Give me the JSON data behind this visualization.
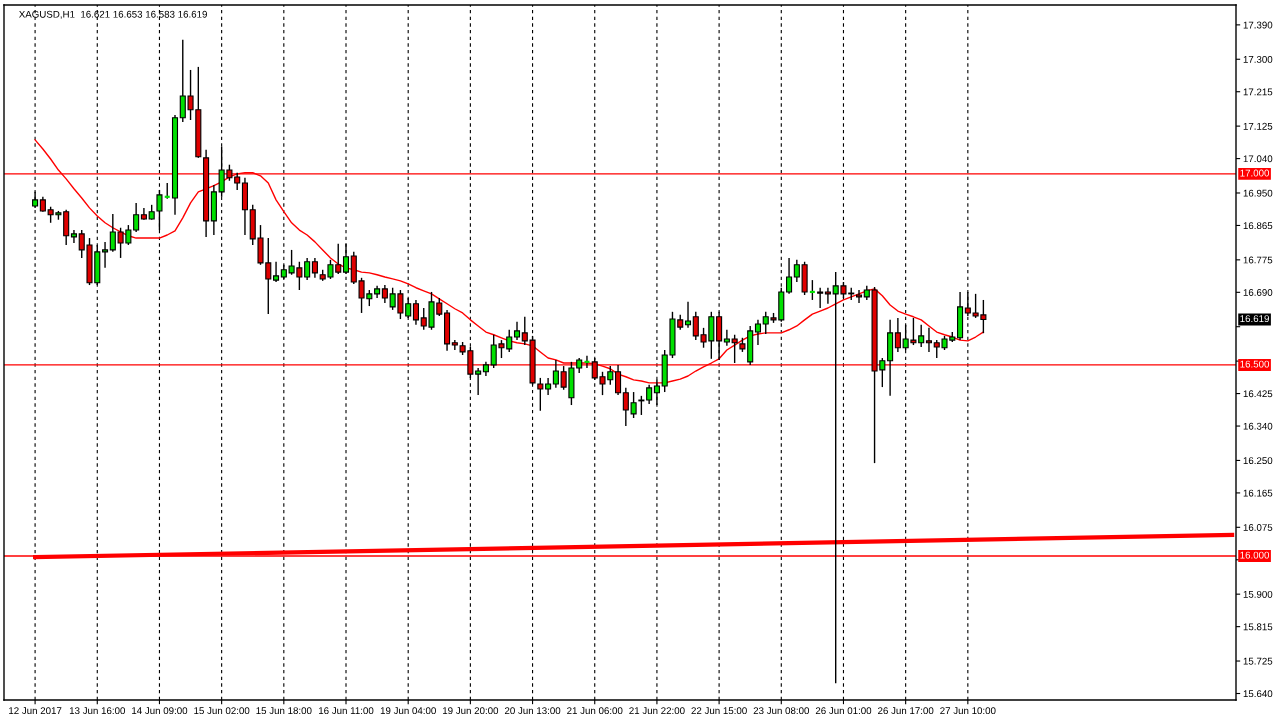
{
  "chart_data": {
    "type": "candlestick",
    "title": "XAGUSD,H1  16.621 16.653 16.583 16.619",
    "categories": [
      "12 Jun 2017",
      null,
      null,
      null,
      null,
      null,
      null,
      null,
      "13 Jun 16:00",
      null,
      null,
      null,
      null,
      null,
      null,
      null,
      "14 Jun 09:00",
      null,
      null,
      null,
      null,
      null,
      null,
      null,
      "15 Jun 02:00",
      null,
      null,
      null,
      null,
      null,
      null,
      null,
      "15 Jun 18:00",
      null,
      null,
      null,
      null,
      null,
      null,
      null,
      "16 Jun 11:00",
      null,
      null,
      null,
      null,
      null,
      null,
      null,
      "19 Jun 04:00",
      null,
      null,
      null,
      null,
      null,
      null,
      null,
      "19 Jun 20:00",
      null,
      null,
      null,
      null,
      null,
      null,
      null,
      "20 Jun 13:00",
      null,
      null,
      null,
      null,
      null,
      null,
      null,
      "21 Jun 06:00",
      null,
      null,
      null,
      null,
      null,
      null,
      null,
      "21 Jun 22:00",
      null,
      null,
      null,
      null,
      null,
      null,
      null,
      "22 Jun 15:00",
      null,
      null,
      null,
      null,
      null,
      null,
      null,
      "23 Jun 08:00",
      null,
      null,
      null,
      null,
      null,
      null,
      null,
      "26 Jun 01:00",
      null,
      null,
      null,
      null,
      null,
      null,
      null,
      "26 Jun 17:00",
      null,
      null,
      null,
      null,
      null,
      null,
      null,
      "27 Jun 10:00",
      null,
      null,
      null,
      null,
      null,
      null,
      null,
      null,
      null,
      null,
      null,
      null,
      null,
      null,
      null,
      null,
      null,
      null,
      null,
      null,
      null,
      null,
      null,
      null,
      null,
      null,
      null,
      null,
      null,
      null,
      null,
      null,
      null,
      null
    ],
    "ohlc": [
      [
        16.916,
        16.953,
        16.911,
        16.932
      ],
      [
        16.932,
        16.94,
        16.901,
        16.903
      ],
      [
        16.906,
        16.914,
        16.872,
        16.893
      ],
      [
        16.893,
        16.903,
        16.88,
        16.898
      ],
      [
        16.901,
        16.906,
        16.814,
        16.838
      ],
      [
        16.835,
        16.853,
        16.819,
        16.843
      ],
      [
        16.843,
        16.853,
        16.78,
        16.801
      ],
      [
        16.814,
        16.832,
        16.709,
        16.715
      ],
      [
        16.715,
        16.814,
        16.709,
        16.796
      ],
      [
        16.796,
        16.822,
        16.754,
        16.801
      ],
      [
        16.801,
        16.895,
        16.796,
        16.848
      ],
      [
        16.848,
        16.859,
        16.78,
        16.819
      ],
      [
        16.819,
        16.866,
        16.814,
        16.853
      ],
      [
        16.853,
        16.924,
        16.848,
        16.893
      ],
      [
        16.893,
        16.911,
        16.88,
        16.882
      ],
      [
        16.882,
        16.919,
        16.88,
        16.901
      ],
      [
        16.903,
        16.958,
        16.853,
        16.945
      ],
      [
        16.94,
        16.976,
        16.935,
        16.94
      ],
      [
        16.937,
        17.154,
        16.893,
        17.147
      ],
      [
        17.147,
        17.351,
        17.136,
        17.204
      ],
      [
        17.204,
        17.272,
        17.141,
        17.168
      ],
      [
        17.168,
        17.28,
        17.042,
        17.045
      ],
      [
        17.042,
        17.063,
        16.835,
        16.877
      ],
      [
        16.877,
        16.971,
        16.84,
        16.953
      ],
      [
        16.953,
        17.071,
        16.94,
        17.01
      ],
      [
        17.01,
        17.024,
        16.982,
        16.99
      ],
      [
        16.992,
        17.003,
        16.958,
        16.976
      ],
      [
        16.976,
        16.99,
        16.84,
        16.906
      ],
      [
        16.906,
        16.919,
        16.814,
        16.83
      ],
      [
        16.832,
        16.866,
        16.762,
        16.767
      ],
      [
        16.767,
        16.832,
        16.633,
        16.725
      ],
      [
        16.722,
        16.77,
        16.717,
        16.733
      ],
      [
        16.73,
        16.762,
        16.725,
        16.749
      ],
      [
        16.741,
        16.801,
        16.736,
        16.759
      ],
      [
        16.754,
        16.77,
        16.696,
        16.73
      ],
      [
        16.73,
        16.78,
        16.722,
        16.77
      ],
      [
        16.77,
        16.78,
        16.728,
        16.741
      ],
      [
        16.736,
        16.749,
        16.72,
        16.725
      ],
      [
        16.73,
        16.775,
        16.725,
        16.762
      ],
      [
        16.762,
        16.817,
        16.738,
        16.743
      ],
      [
        16.743,
        16.817,
        16.738,
        16.783
      ],
      [
        16.785,
        16.796,
        16.712,
        16.717
      ],
      [
        16.72,
        16.728,
        16.636,
        16.675
      ],
      [
        16.673,
        16.696,
        16.654,
        16.686
      ],
      [
        16.686,
        16.707,
        16.675,
        16.699
      ],
      [
        16.699,
        16.709,
        16.662,
        16.675
      ],
      [
        16.652,
        16.702,
        16.644,
        16.686
      ],
      [
        16.686,
        16.696,
        16.62,
        16.636
      ],
      [
        16.628,
        16.675,
        16.623,
        16.66
      ],
      [
        16.66,
        16.67,
        16.605,
        16.618
      ],
      [
        16.623,
        16.649,
        16.592,
        16.602
      ],
      [
        16.599,
        16.691,
        16.592,
        16.665
      ],
      [
        16.662,
        16.675,
        16.628,
        16.633
      ],
      [
        16.636,
        16.644,
        16.537,
        16.555
      ],
      [
        16.558,
        16.565,
        16.539,
        16.552
      ],
      [
        16.55,
        16.56,
        16.526,
        16.534
      ],
      [
        16.537,
        16.547,
        16.466,
        16.476
      ],
      [
        16.476,
        16.492,
        16.421,
        16.484
      ],
      [
        16.482,
        16.508,
        16.471,
        16.5
      ],
      [
        16.5,
        16.579,
        16.492,
        16.552
      ],
      [
        16.555,
        16.565,
        16.518,
        16.545
      ],
      [
        16.542,
        16.592,
        16.534,
        16.573
      ],
      [
        16.573,
        16.613,
        16.565,
        16.589
      ],
      [
        16.584,
        16.626,
        16.552,
        16.563
      ],
      [
        16.565,
        16.576,
        16.448,
        16.453
      ],
      [
        16.45,
        16.466,
        16.38,
        16.437
      ],
      [
        16.437,
        16.466,
        16.421,
        16.45
      ],
      [
        16.45,
        16.513,
        16.44,
        16.484
      ],
      [
        16.482,
        16.497,
        16.435,
        16.442
      ],
      [
        16.414,
        16.508,
        16.395,
        16.492
      ],
      [
        16.492,
        16.518,
        16.479,
        16.513
      ],
      [
        16.508,
        16.524,
        16.492,
        16.508
      ],
      [
        16.508,
        16.518,
        16.461,
        16.466
      ],
      [
        16.469,
        16.482,
        16.421,
        16.45
      ],
      [
        16.461,
        16.497,
        16.448,
        16.482
      ],
      [
        16.482,
        16.5,
        16.421,
        16.427
      ],
      [
        16.427,
        16.44,
        16.34,
        16.382
      ],
      [
        16.372,
        16.429,
        16.361,
        16.401
      ],
      [
        16.406,
        16.419,
        16.369,
        16.408
      ],
      [
        16.408,
        16.448,
        16.398,
        16.44
      ],
      [
        16.427,
        16.461,
        16.395,
        16.445
      ],
      [
        16.445,
        16.539,
        16.429,
        16.526
      ],
      [
        16.526,
        16.639,
        16.518,
        16.62
      ],
      [
        16.618,
        16.631,
        16.592,
        16.599
      ],
      [
        16.605,
        16.665,
        16.597,
        16.615
      ],
      [
        16.626,
        16.639,
        16.565,
        16.576
      ],
      [
        16.579,
        16.597,
        16.545,
        16.56
      ],
      [
        16.563,
        16.639,
        16.516,
        16.626
      ],
      [
        16.626,
        16.639,
        16.513,
        16.563
      ],
      [
        16.56,
        16.592,
        16.55,
        16.568
      ],
      [
        16.568,
        16.579,
        16.505,
        16.558
      ],
      [
        16.555,
        16.571,
        16.534,
        16.542
      ],
      [
        16.508,
        16.602,
        16.5,
        16.589
      ],
      [
        16.586,
        16.618,
        16.552,
        16.607
      ],
      [
        16.607,
        16.639,
        16.581,
        16.626
      ],
      [
        16.623,
        16.636,
        16.61,
        16.618
      ],
      [
        16.618,
        16.702,
        16.613,
        16.691
      ],
      [
        16.691,
        16.78,
        16.686,
        16.73
      ],
      [
        16.73,
        16.775,
        16.717,
        16.762
      ],
      [
        16.762,
        16.77,
        16.683,
        16.691
      ],
      [
        16.691,
        16.722,
        16.67,
        16.691
      ],
      [
        16.691,
        16.702,
        16.649,
        16.688
      ],
      [
        16.691,
        16.702,
        16.66,
        16.686
      ],
      [
        16.686,
        16.743,
        15.667,
        16.707
      ],
      [
        16.707,
        16.717,
        16.675,
        16.686
      ],
      [
        16.688,
        16.702,
        16.67,
        16.686
      ],
      [
        16.683,
        16.696,
        16.662,
        16.678
      ],
      [
        16.678,
        16.707,
        16.67,
        16.696
      ],
      [
        16.696,
        16.704,
        16.243,
        16.484
      ],
      [
        16.487,
        16.518,
        16.442,
        16.511
      ],
      [
        16.511,
        16.618,
        16.419,
        16.584
      ],
      [
        16.584,
        16.623,
        16.534,
        16.545
      ],
      [
        16.545,
        16.605,
        16.539,
        16.568
      ],
      [
        16.565,
        16.623,
        16.552,
        16.558
      ],
      [
        16.558,
        16.605,
        16.547,
        16.576
      ],
      [
        16.563,
        16.597,
        16.534,
        16.558
      ],
      [
        16.558,
        16.565,
        16.518,
        16.547
      ],
      [
        16.545,
        16.576,
        16.539,
        16.568
      ],
      [
        16.565,
        16.586,
        16.56,
        16.573
      ],
      [
        16.571,
        16.691,
        16.565,
        16.652
      ],
      [
        16.649,
        16.691,
        16.628,
        16.636
      ],
      [
        16.636,
        16.686,
        16.623,
        16.628
      ],
      [
        16.631,
        16.67,
        16.583,
        16.619
      ],
      null,
      null,
      null,
      null,
      null,
      null,
      null,
      null,
      null,
      null,
      null,
      null,
      null,
      null,
      null,
      null,
      null,
      null,
      null,
      null,
      null,
      null,
      null,
      null,
      null,
      null,
      null,
      null,
      null,
      null,
      null,
      null
    ],
    "colors": [
      "#00e000",
      "#e00000",
      "#e00000",
      "#00e000",
      "#e00000",
      "#00e000",
      "#e00000",
      "#e00000",
      "#00e000",
      "#00e000",
      "#00e000",
      "#e00000",
      "#00e000",
      "#00e000",
      "#e00000",
      "#00e000",
      "#00e000",
      "#00e000",
      "#00e000",
      "#00e000",
      "#e00000",
      "#e00000",
      "#e00000",
      "#00e000",
      "#00e000",
      "#e00000",
      "#e00000",
      "#e00000",
      "#e00000",
      "#e00000",
      "#e00000",
      "#00e000",
      "#00e000",
      "#00e000",
      "#e00000",
      "#00e000",
      "#e00000",
      "#e00000",
      "#00e000",
      "#e00000",
      "#00e000",
      "#e00000",
      "#e00000",
      "#00e000",
      "#00e000",
      "#e00000",
      "#00e000",
      "#e00000",
      "#00e000",
      "#e00000",
      "#e00000",
      "#00e000",
      "#e00000",
      "#e00000",
      "#e00000",
      "#e00000",
      "#e00000",
      "#00e000",
      "#00e000",
      "#00e000",
      "#e00000",
      "#00e000",
      "#00e000",
      "#e00000",
      "#e00000",
      "#e00000",
      "#00e000",
      "#00e000",
      "#e00000",
      "#00e000",
      "#00e000",
      "#00e000",
      "#e00000",
      "#e00000",
      "#00e000",
      "#e00000",
      "#e00000",
      "#00e000",
      "#00e000",
      "#00e000",
      "#00e000",
      "#00e000",
      "#00e000",
      "#e00000",
      "#00e000",
      "#e00000",
      "#e00000",
      "#00e000",
      "#e00000",
      "#00e000",
      "#e00000",
      "#e00000",
      "#00e000",
      "#00e000",
      "#00e000",
      "#e00000",
      "#00e000",
      "#00e000",
      "#00e000",
      "#e00000",
      "#00e000",
      "#e00000",
      "#e00000",
      "#00e000",
      "#e00000",
      "#e00000",
      "#e00000",
      "#00e000",
      "#e00000",
      "#00e000",
      "#00e000",
      "#e00000",
      "#00e000",
      "#e00000",
      "#00e000",
      "#e00000",
      "#e00000",
      "#00e000",
      "#00e000",
      "#00e000",
      "#e00000",
      "#e00000",
      "#e00000",
      null,
      null,
      null,
      null,
      null,
      null,
      null,
      null,
      null,
      null,
      null,
      null,
      null,
      null,
      null,
      null,
      null,
      null,
      null,
      null,
      null,
      null,
      null,
      null,
      null,
      null,
      null,
      null,
      null,
      null,
      null,
      null
    ],
    "series": [
      {
        "type": "line",
        "color": "#ff0000",
        "values": [
          17.089,
          17.065,
          17.039,
          17.01,
          16.987,
          16.961,
          16.937,
          16.911,
          16.89,
          16.872,
          16.859,
          16.848,
          16.838,
          16.832,
          16.832,
          16.832,
          16.832,
          16.84,
          16.851,
          16.885,
          16.924,
          16.953,
          16.961,
          16.969,
          16.979,
          16.992,
          17.0,
          17.003,
          17.003,
          16.995,
          16.976,
          16.932,
          16.901,
          16.872,
          16.853,
          16.84,
          16.822,
          16.801,
          16.78,
          16.764,
          16.754,
          16.749,
          16.743,
          16.741,
          16.736,
          16.73,
          16.725,
          16.72,
          16.712,
          16.702,
          16.694,
          16.686,
          16.673,
          16.66,
          16.647,
          16.636,
          16.618,
          16.602,
          16.586,
          16.579,
          16.571,
          16.563,
          16.558,
          16.555,
          16.55,
          16.534,
          16.518,
          16.513,
          16.505,
          16.505,
          16.505,
          16.505,
          16.503,
          16.497,
          16.49,
          16.476,
          16.469,
          16.461,
          16.458,
          16.453,
          16.453,
          16.453,
          16.458,
          16.463,
          16.471,
          16.484,
          16.495,
          16.505,
          16.516,
          16.539,
          16.552,
          16.565,
          16.576,
          16.581,
          16.584,
          16.584,
          16.584,
          16.592,
          16.602,
          16.618,
          16.633,
          16.641,
          16.649,
          16.66,
          16.67,
          16.678,
          16.686,
          16.694,
          16.699,
          16.681,
          16.657,
          16.641,
          16.633,
          16.626,
          16.618,
          16.602,
          16.586,
          16.579,
          16.573,
          16.565,
          16.563,
          16.573,
          16.586,
          null,
          null,
          null,
          null,
          null,
          null,
          null,
          null,
          null,
          null,
          null,
          null,
          null,
          null,
          null,
          null,
          null,
          null,
          null,
          null,
          null,
          null,
          null,
          null,
          null,
          null,
          null,
          null,
          null,
          null,
          null,
          null
        ]
      },
      {
        "type": "line",
        "color": "#ff0000",
        "values": [
          15.997,
          null,
          null,
          null,
          null,
          null,
          null,
          null,
          null,
          null,
          null,
          null,
          null,
          null,
          null,
          null,
          null,
          null,
          null,
          null,
          null,
          null,
          null,
          null,
          null,
          null,
          null,
          null,
          null,
          null,
          null,
          null,
          null,
          null,
          null,
          null,
          null,
          null,
          null,
          null,
          null,
          null,
          null,
          null,
          null,
          null,
          null,
          null,
          null,
          null,
          null,
          null,
          null,
          null,
          null,
          null,
          null,
          null,
          null,
          null,
          null,
          null,
          null,
          null,
          null,
          null,
          null,
          null,
          null,
          null,
          null,
          null,
          null,
          null,
          null,
          null,
          null,
          null,
          null,
          null,
          null,
          null,
          null,
          null,
          null,
          null,
          null,
          null,
          null,
          null,
          null,
          null,
          null,
          null,
          null,
          null,
          null,
          null,
          null,
          null,
          null,
          null,
          null,
          null,
          null,
          null,
          null,
          null,
          null,
          null,
          null,
          null,
          null,
          null,
          null,
          null,
          null,
          null,
          null,
          null,
          null,
          null,
          null,
          null,
          null,
          null,
          null,
          null,
          null,
          null,
          null,
          null,
          null,
          null,
          null,
          null,
          null,
          null,
          null,
          null,
          null,
          null,
          null,
          null,
          null,
          null,
          null,
          null,
          null,
          null,
          null,
          null,
          null,
          null,
          16.055
        ]
      }
    ],
    "ylim": [
      15.623,
      17.442
    ],
    "yticks": [
      {
        "value": 17.39,
        "label": "17.390"
      },
      {
        "value": 17.3,
        "label": "17.300"
      },
      {
        "value": 17.215,
        "label": "17.215"
      },
      {
        "value": 17.125,
        "label": "17.125"
      },
      {
        "value": 17.04,
        "label": "17.040"
      },
      {
        "value": 16.95,
        "label": "16.950"
      },
      {
        "value": 16.865,
        "label": "16.865"
      },
      {
        "value": 16.775,
        "label": "16.775"
      },
      {
        "value": 16.69,
        "label": "16.690"
      },
      {
        "value": 16.6,
        "label": null
      },
      {
        "value": 16.51,
        "label": null
      },
      {
        "value": 16.425,
        "label": "16.425"
      },
      {
        "value": 16.34,
        "label": "16.340"
      },
      {
        "value": 16.25,
        "label": "16.250"
      },
      {
        "value": 16.165,
        "label": "16.165"
      },
      {
        "value": 16.075,
        "label": "16.075"
      },
      {
        "value": 15.99,
        "label": null
      },
      {
        "value": 15.9,
        "label": "15.900"
      },
      {
        "value": 15.815,
        "label": "15.815"
      },
      {
        "value": 15.725,
        "label": "15.725"
      },
      {
        "value": 15.64,
        "label": "15.640"
      }
    ],
    "ref_lines": [
      {
        "axis": "y",
        "value": 17.0,
        "label": "17.000",
        "color": "#ff0000"
      },
      {
        "axis": "y",
        "value": 16.5,
        "label": "16.500",
        "color": "#ff0000"
      },
      {
        "axis": "y",
        "value": 16.0,
        "label": "16.000",
        "color": "#ff0000"
      }
    ],
    "annotations": [
      {
        "text": "16.619",
        "y": 16.619
      }
    ],
    "grid": "x"
  }
}
